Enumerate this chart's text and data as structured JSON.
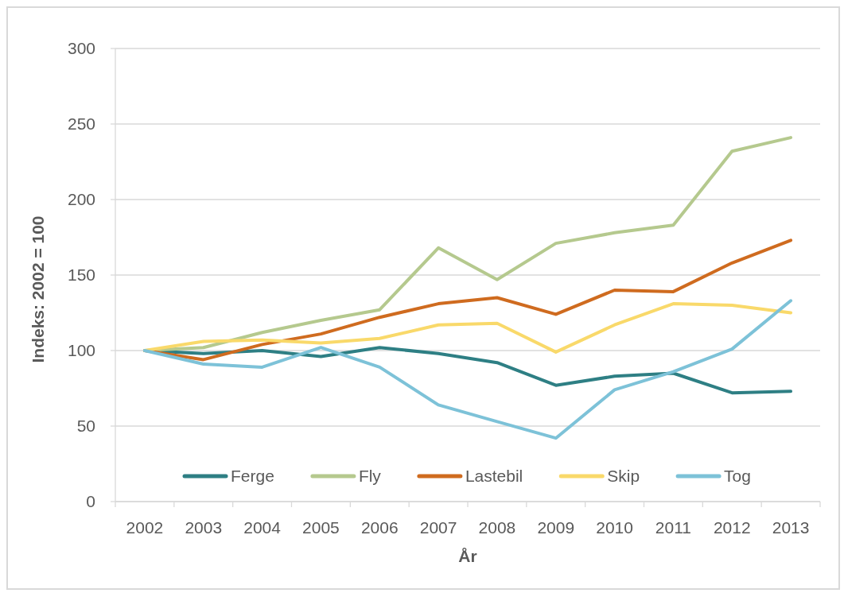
{
  "chart_data": {
    "type": "line",
    "xlabel": "År",
    "ylabel": "Indeks: 2002 = 100",
    "categories": [
      "2002",
      "2003",
      "2004",
      "2005",
      "2006",
      "2007",
      "2008",
      "2009",
      "2010",
      "2011",
      "2012",
      "2013"
    ],
    "series": [
      {
        "name": "Ferge",
        "color": "#2e7f84",
        "values": [
          100,
          98,
          100,
          96,
          102,
          98,
          92,
          77,
          83,
          85,
          72,
          73
        ]
      },
      {
        "name": "Fly",
        "color": "#b5c98e",
        "values": [
          100,
          102,
          112,
          120,
          127,
          168,
          147,
          171,
          178,
          183,
          232,
          241
        ]
      },
      {
        "name": "Lastebil",
        "color": "#cf6b1f",
        "values": [
          100,
          94,
          104,
          111,
          122,
          131,
          135,
          124,
          140,
          139,
          158,
          173
        ]
      },
      {
        "name": "Skip",
        "color": "#f9d96a",
        "values": [
          100,
          106,
          107,
          105,
          108,
          117,
          118,
          99,
          117,
          131,
          130,
          125
        ]
      },
      {
        "name": "Tog",
        "color": "#7dc2d8",
        "values": [
          100,
          91,
          89,
          102,
          89,
          64,
          53,
          42,
          74,
          86,
          101,
          133
        ]
      }
    ],
    "ylim": [
      0,
      300
    ],
    "yticks": [
      0,
      50,
      100,
      150,
      200,
      250,
      300
    ],
    "grid": "y",
    "legend": "bottom",
    "marker": "none",
    "line_style": "solid"
  }
}
